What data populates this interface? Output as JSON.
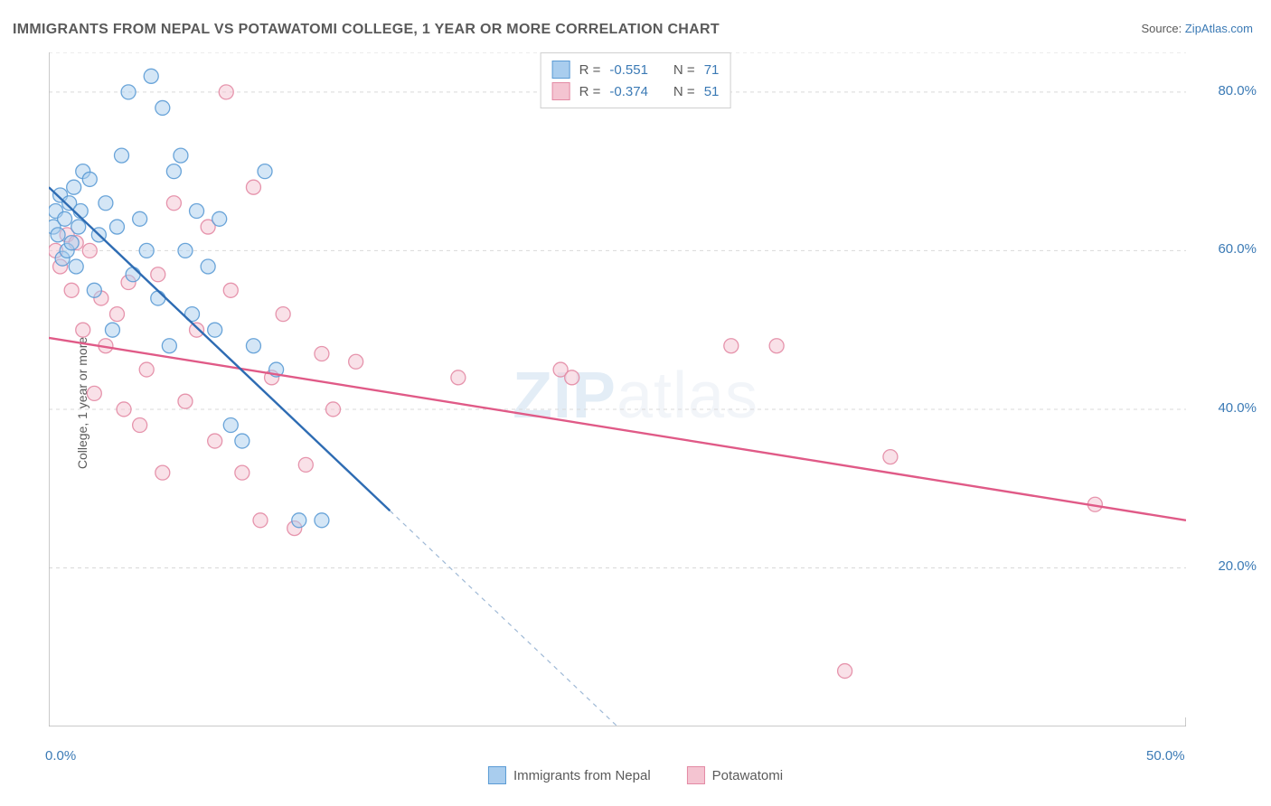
{
  "title": "IMMIGRANTS FROM NEPAL VS POTAWATOMI COLLEGE, 1 YEAR OR MORE CORRELATION CHART",
  "source_prefix": "Source: ",
  "source_name": "ZipAtlas.com",
  "watermark_zip": "ZIP",
  "watermark_atlas": "atlas",
  "y_axis_label": "College, 1 year or more",
  "chart": {
    "type": "scatter",
    "background_color": "#ffffff",
    "grid_color": "#d9d9d9",
    "axis_color": "#b8b8b8",
    "tick_color": "#b8b8b8",
    "xlim": [
      0,
      50
    ],
    "ylim": [
      0,
      85
    ],
    "xticks_minor": [
      0,
      5,
      10,
      15,
      20,
      25,
      30,
      35,
      40,
      45,
      50
    ],
    "yticks": [
      20,
      40,
      60,
      80
    ],
    "ytick_labels": [
      "20.0%",
      "40.0%",
      "60.0%",
      "80.0%"
    ],
    "xtick_labels": {
      "left": "0.0%",
      "right": "50.0%"
    },
    "marker_radius": 8,
    "marker_opacity": 0.5,
    "line_width": 2.4,
    "series": [
      {
        "name": "Immigrants from Nepal",
        "fill": "#a9cdee",
        "stroke": "#5b9bd5",
        "line_color": "#2e6cb3",
        "R": "-0.551",
        "N": "71",
        "trend": {
          "x1": 0,
          "y1": 68,
          "x2": 25,
          "y2": 0,
          "solid_until_x": 15
        },
        "points": [
          [
            0.2,
            63
          ],
          [
            0.3,
            65
          ],
          [
            0.4,
            62
          ],
          [
            0.5,
            67
          ],
          [
            0.6,
            59
          ],
          [
            0.7,
            64
          ],
          [
            0.8,
            60
          ],
          [
            0.9,
            66
          ],
          [
            1.0,
            61
          ],
          [
            1.1,
            68
          ],
          [
            1.2,
            58
          ],
          [
            1.3,
            63
          ],
          [
            1.4,
            65
          ],
          [
            1.5,
            70
          ],
          [
            1.8,
            69
          ],
          [
            2.0,
            55
          ],
          [
            2.2,
            62
          ],
          [
            2.5,
            66
          ],
          [
            2.8,
            50
          ],
          [
            3.0,
            63
          ],
          [
            3.2,
            72
          ],
          [
            3.5,
            80
          ],
          [
            3.7,
            57
          ],
          [
            4.0,
            64
          ],
          [
            4.3,
            60
          ],
          [
            4.5,
            82
          ],
          [
            4.8,
            54
          ],
          [
            5.0,
            78
          ],
          [
            5.3,
            48
          ],
          [
            5.5,
            70
          ],
          [
            5.8,
            72
          ],
          [
            6.0,
            60
          ],
          [
            6.3,
            52
          ],
          [
            6.5,
            65
          ],
          [
            7.0,
            58
          ],
          [
            7.3,
            50
          ],
          [
            7.5,
            64
          ],
          [
            8.0,
            38
          ],
          [
            8.5,
            36
          ],
          [
            9.0,
            48
          ],
          [
            9.5,
            70
          ],
          [
            10.0,
            45
          ],
          [
            11.0,
            26
          ],
          [
            12.0,
            26
          ]
        ]
      },
      {
        "name": "Potawatomi",
        "fill": "#f4c4d1",
        "stroke": "#e38aa4",
        "line_color": "#e05a87",
        "R": "-0.374",
        "N": "51",
        "trend": {
          "x1": 0,
          "y1": 49,
          "x2": 50,
          "y2": 26
        },
        "points": [
          [
            0.3,
            60
          ],
          [
            0.5,
            58
          ],
          [
            0.8,
            62
          ],
          [
            1.0,
            55
          ],
          [
            1.2,
            61
          ],
          [
            1.5,
            50
          ],
          [
            1.8,
            60
          ],
          [
            2.0,
            42
          ],
          [
            2.3,
            54
          ],
          [
            2.5,
            48
          ],
          [
            3.0,
            52
          ],
          [
            3.3,
            40
          ],
          [
            3.5,
            56
          ],
          [
            4.0,
            38
          ],
          [
            4.3,
            45
          ],
          [
            4.8,
            57
          ],
          [
            5.0,
            32
          ],
          [
            5.5,
            66
          ],
          [
            6.0,
            41
          ],
          [
            6.5,
            50
          ],
          [
            7.0,
            63
          ],
          [
            7.3,
            36
          ],
          [
            7.8,
            80
          ],
          [
            8.0,
            55
          ],
          [
            8.5,
            32
          ],
          [
            9.0,
            68
          ],
          [
            9.3,
            26
          ],
          [
            9.8,
            44
          ],
          [
            10.3,
            52
          ],
          [
            10.8,
            25
          ],
          [
            11.3,
            33
          ],
          [
            12.0,
            47
          ],
          [
            12.5,
            40
          ],
          [
            13.5,
            46
          ],
          [
            18.0,
            44
          ],
          [
            22.5,
            45
          ],
          [
            23.0,
            44
          ],
          [
            30.0,
            48
          ],
          [
            32.0,
            48
          ],
          [
            35.0,
            7
          ],
          [
            37.0,
            34
          ],
          [
            46.0,
            28
          ]
        ]
      }
    ]
  },
  "legend": {
    "series1_label": "Immigrants from Nepal",
    "series2_label": "Potawatomi"
  },
  "stats_labels": {
    "R": "R =",
    "N": "N ="
  }
}
